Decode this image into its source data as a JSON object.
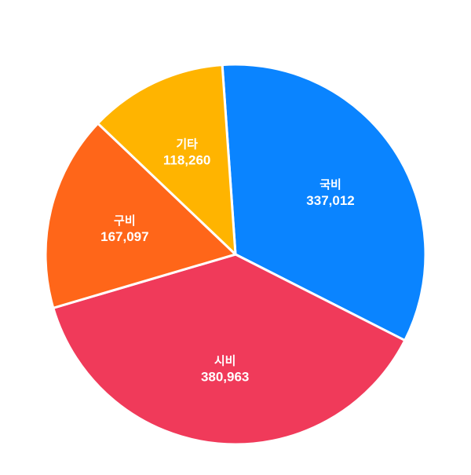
{
  "chart_data": {
    "type": "pie",
    "slices": [
      {
        "label": "국비",
        "value": 337012,
        "display": "337,012",
        "color": "#0a84ff"
      },
      {
        "label": "시비",
        "value": 380963,
        "display": "380,963",
        "color": "#f03a5a"
      },
      {
        "label": "구비",
        "value": 167097,
        "display": "167,097",
        "color": "#ff6619"
      },
      {
        "label": "기타",
        "value": 118260,
        "display": "118,260",
        "color": "#ffb400"
      }
    ],
    "start_angle_deg": -4,
    "direction": "clockwise",
    "legend": "none",
    "slice_border_color": "#ffffff"
  }
}
